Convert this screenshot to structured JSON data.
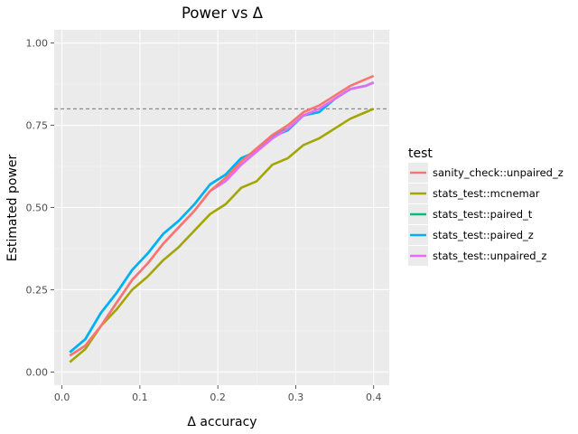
{
  "chart_data": {
    "type": "line",
    "title": "Power vs Δ",
    "xlabel": "Δ accuracy",
    "ylabel": "Estimated power",
    "xlim": [
      -0.01,
      0.42
    ],
    "ylim": [
      -0.04,
      1.04
    ],
    "x_ticks": [
      0.0,
      0.1,
      0.2,
      0.3,
      0.4
    ],
    "x_tick_labels": [
      "0.0",
      "0.1",
      "0.2",
      "0.3",
      "0.4"
    ],
    "y_ticks": [
      0.0,
      0.25,
      0.5,
      0.75,
      1.0
    ],
    "y_tick_labels": [
      "0.00",
      "0.25",
      "0.50",
      "0.75",
      "1.00"
    ],
    "reference_line": {
      "y": 0.8,
      "style": "dashed"
    },
    "grid": true,
    "legend_title": "test",
    "legend_position": "right",
    "x": [
      0.01,
      0.03,
      0.05,
      0.07,
      0.09,
      0.11,
      0.13,
      0.15,
      0.17,
      0.19,
      0.21,
      0.23,
      0.25,
      0.27,
      0.29,
      0.31,
      0.33,
      0.35,
      0.37,
      0.39,
      0.4
    ],
    "series": [
      {
        "name": "stats_test::mcnemar",
        "color": "#a3a500",
        "values": [
          0.03,
          0.07,
          0.14,
          0.19,
          0.25,
          0.29,
          0.34,
          0.38,
          0.43,
          0.48,
          0.51,
          0.56,
          0.58,
          0.63,
          0.65,
          0.69,
          0.71,
          0.74,
          0.77,
          0.79,
          0.8
        ]
      },
      {
        "name": "stats_test::paired_t",
        "color": "#00bf7d",
        "values": [
          0.06,
          0.1,
          0.18,
          0.24,
          0.31,
          0.36,
          0.42,
          0.46,
          0.51,
          0.57,
          0.6,
          0.65,
          0.67,
          0.72,
          0.74,
          0.78,
          0.79,
          0.83,
          0.86,
          0.87,
          0.88
        ]
      },
      {
        "name": "stats_test::paired_z",
        "color": "#00b0f6",
        "values": [
          0.06,
          0.1,
          0.18,
          0.24,
          0.31,
          0.36,
          0.42,
          0.46,
          0.51,
          0.57,
          0.6,
          0.65,
          0.67,
          0.715,
          0.735,
          0.78,
          0.79,
          0.83,
          0.86,
          0.87,
          0.88
        ]
      },
      {
        "name": "stats_test::unpaired_z",
        "color": "#e76bf3",
        "values": [
          0.05,
          0.08,
          0.14,
          0.21,
          0.28,
          0.33,
          0.39,
          0.44,
          0.49,
          0.55,
          0.58,
          0.63,
          0.67,
          0.71,
          0.74,
          0.78,
          0.8,
          0.83,
          0.86,
          0.87,
          0.88
        ]
      },
      {
        "name": "sanity_check::unpaired_z",
        "color": "#f8766d",
        "values": [
          0.05,
          0.08,
          0.14,
          0.21,
          0.28,
          0.33,
          0.39,
          0.44,
          0.49,
          0.55,
          0.59,
          0.64,
          0.68,
          0.72,
          0.75,
          0.79,
          0.81,
          0.84,
          0.87,
          0.89,
          0.9
        ]
      }
    ],
    "legend_order": [
      "sanity_check::unpaired_z",
      "stats_test::mcnemar",
      "stats_test::paired_t",
      "stats_test::paired_z",
      "stats_test::unpaired_z"
    ]
  }
}
